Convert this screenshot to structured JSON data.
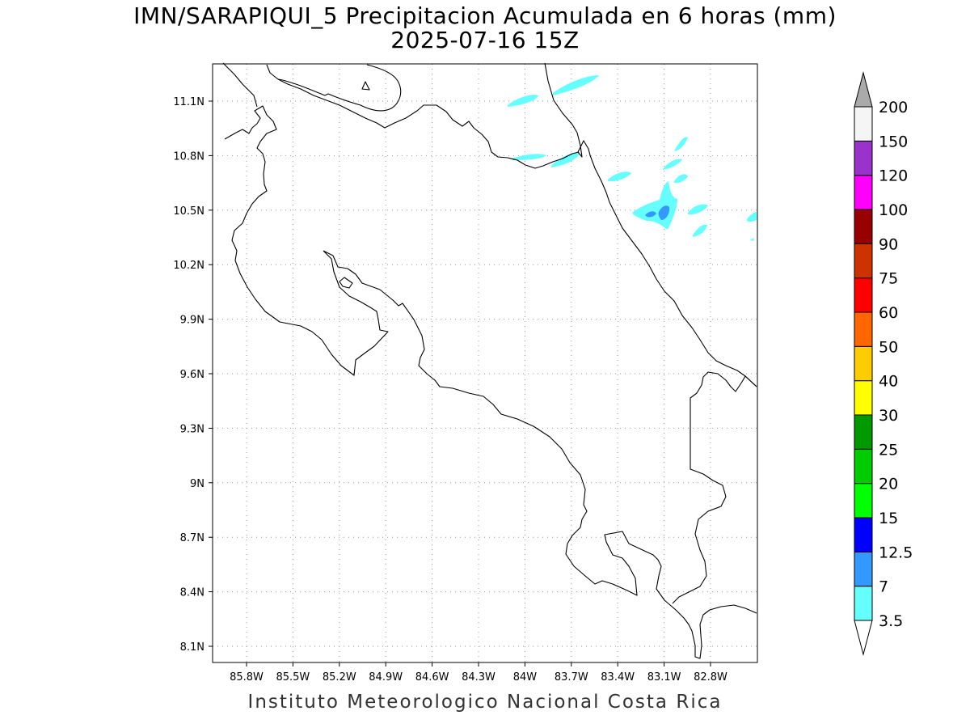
{
  "title": {
    "line1": "IMN/SARAPIQUI_5 Precipitacion Acumulada en 6 horas (mm)",
    "line2": "2025-07-16 15Z"
  },
  "footer": "Instituto Meteorologico Nacional Costa Rica",
  "map": {
    "lon_range": [
      -86.0,
      -82.5
    ],
    "lat_range": [
      7.9,
      11.3
    ],
    "lon_ticks": [
      "85.8W",
      "85.5W",
      "85.2W",
      "84.9W",
      "84.6W",
      "84.3W",
      "84W",
      "83.7W",
      "83.4W",
      "83.1W",
      "82.8W"
    ],
    "lat_ticks": [
      "11.1N",
      "10.8N",
      "10.5N",
      "10.2N",
      "9.9N",
      "9.6N",
      "9.3N",
      "9N",
      "8.7N",
      "8.4N",
      "8.1N"
    ],
    "grid": "dotted"
  },
  "colorbar": {
    "levels": [
      "3.5",
      "7",
      "12.5",
      "15",
      "20",
      "25",
      "30",
      "40",
      "50",
      "60",
      "75",
      "90",
      "100",
      "120",
      "150",
      "200"
    ],
    "colors": [
      "#66ffff",
      "#3399ff",
      "#0000ff",
      "#00ff00",
      "#00cc00",
      "#009900",
      "#ffff00",
      "#ffcc00",
      "#ff6600",
      "#ff0000",
      "#cc3300",
      "#990000",
      "#ff00ff",
      "#9933cc",
      "#f5f5f5"
    ],
    "over_color": "#aaaaaa",
    "under_color": "#ffffff"
  },
  "precip_colors": {
    "light": "#66ffff",
    "moderate": "#3399ff"
  }
}
